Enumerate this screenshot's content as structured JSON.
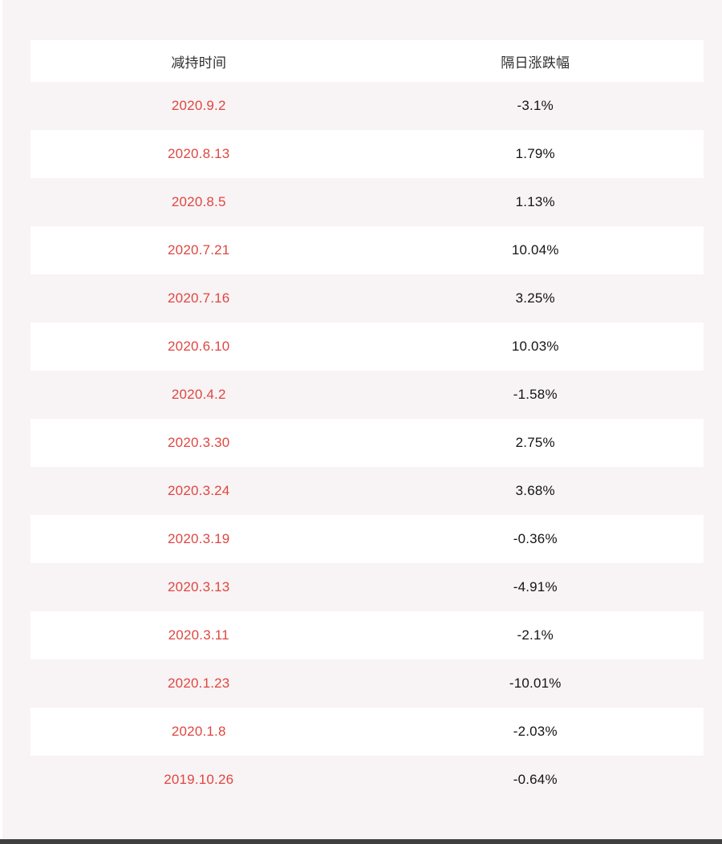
{
  "page": {
    "background_color": "#f8f3f4",
    "left_edge_color": "#ffffff",
    "bottom_bar_color": "#3f3f3f"
  },
  "table": {
    "style": {
      "header_text_color": "#2e2e2e",
      "date_color": "#de4741",
      "value_color": "#141414",
      "row_white": "#ffffff"
    },
    "headers": [
      "减持时间",
      "隔日涨跌幅"
    ],
    "rows": [
      {
        "date": "2020.9.2",
        "change": "-3.1%"
      },
      {
        "date": "2020.8.13",
        "change": "1.79%"
      },
      {
        "date": "2020.8.5",
        "change": "1.13%"
      },
      {
        "date": "2020.7.21",
        "change": "10.04%"
      },
      {
        "date": "2020.7.16",
        "change": "3.25%"
      },
      {
        "date": "2020.6.10",
        "change": "10.03%"
      },
      {
        "date": "2020.4.2",
        "change": "-1.58%"
      },
      {
        "date": "2020.3.30",
        "change": "2.75%"
      },
      {
        "date": "2020.3.24",
        "change": "3.68%"
      },
      {
        "date": "2020.3.19",
        "change": "-0.36%"
      },
      {
        "date": "2020.3.13",
        "change": "-4.91%"
      },
      {
        "date": "2020.3.11",
        "change": "-2.1%"
      },
      {
        "date": "2020.1.23",
        "change": "-10.01%"
      },
      {
        "date": "2020.1.8",
        "change": "-2.03%"
      },
      {
        "date": "2019.10.26",
        "change": "-0.64%"
      }
    ]
  },
  "chart_data": {
    "type": "table",
    "columns": [
      "减持时间",
      "隔日涨跌幅"
    ],
    "rows": [
      [
        "2020.9.2",
        "-3.1%"
      ],
      [
        "2020.8.13",
        "1.79%"
      ],
      [
        "2020.8.5",
        "1.13%"
      ],
      [
        "2020.7.21",
        "10.04%"
      ],
      [
        "2020.7.16",
        "3.25%"
      ],
      [
        "2020.6.10",
        "10.03%"
      ],
      [
        "2020.4.2",
        "-1.58%"
      ],
      [
        "2020.3.30",
        "2.75%"
      ],
      [
        "2020.3.24",
        "3.68%"
      ],
      [
        "2020.3.19",
        "-0.36%"
      ],
      [
        "2020.3.13",
        "-4.91%"
      ],
      [
        "2020.3.11",
        "-2.1%"
      ],
      [
        "2020.1.23",
        "-10.01%"
      ],
      [
        "2020.1.8",
        "-2.03%"
      ],
      [
        "2019.10.26",
        "-0.64%"
      ]
    ],
    "change_pct_numeric": [
      -3.1,
      1.79,
      1.13,
      10.04,
      3.25,
      10.03,
      -1.58,
      2.75,
      3.68,
      -0.36,
      -4.91,
      -2.1,
      -10.01,
      -2.03,
      -0.64
    ],
    "layout": {
      "striped": true,
      "header_background": "#ffffff",
      "stripe_background": "#f8f3f4"
    }
  }
}
